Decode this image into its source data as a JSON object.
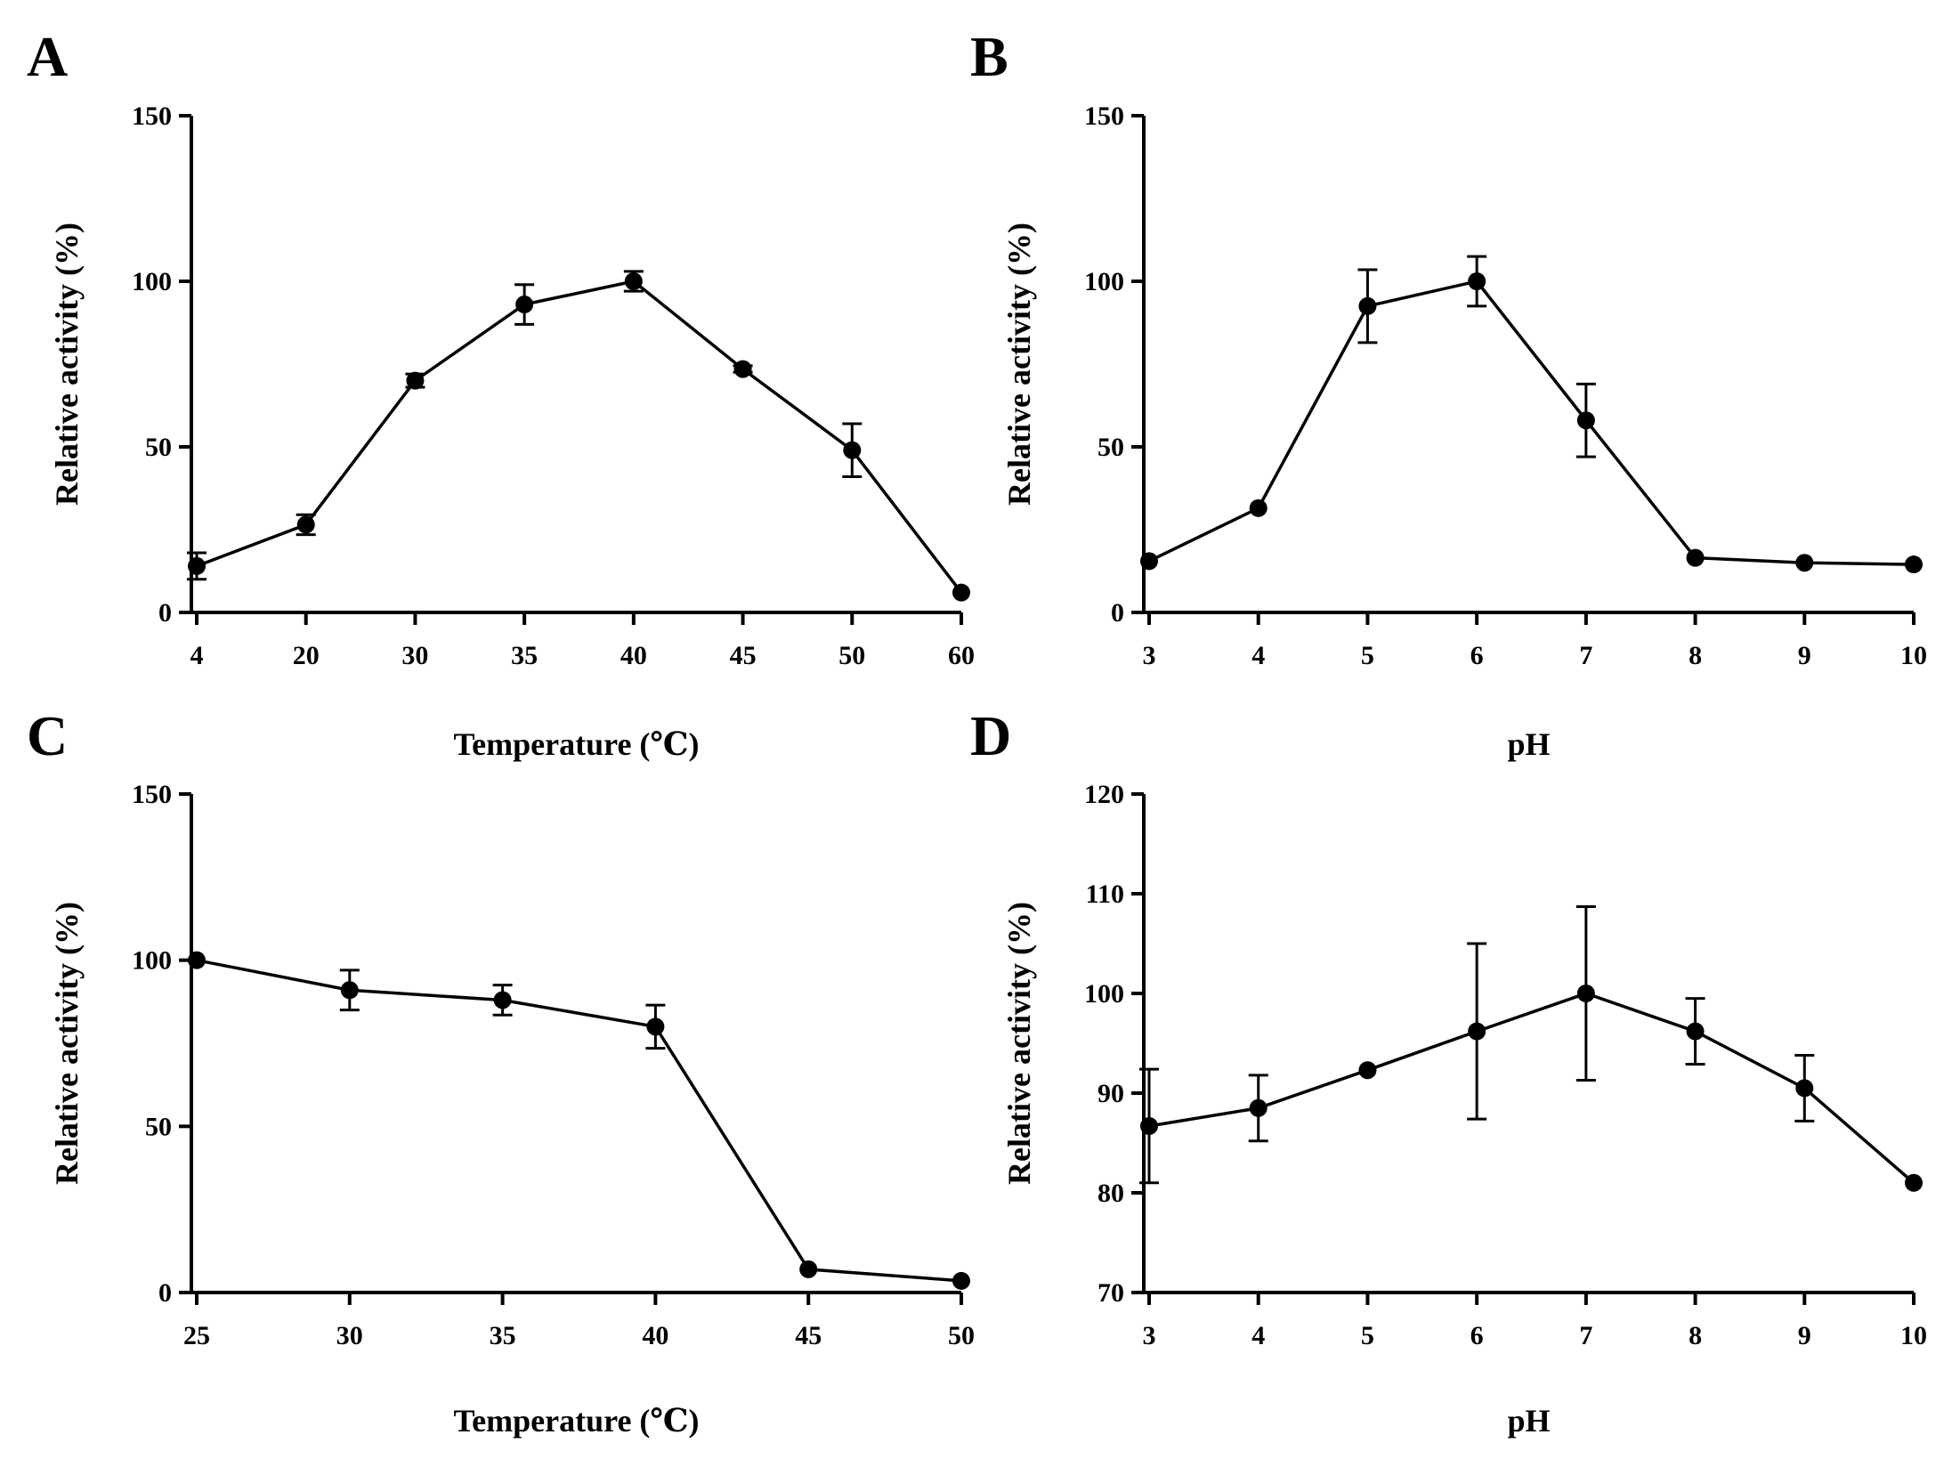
{
  "colors": {
    "ink": "#000000",
    "background": "#ffffff"
  },
  "chart_data": [
    {
      "panel": "A",
      "type": "line",
      "title": "",
      "xlabel": "Temperature (℃)",
      "ylabel": "Relative activity (%)",
      "categories": [
        "4",
        "20",
        "30",
        "35",
        "40",
        "45",
        "50",
        "60"
      ],
      "values": [
        14,
        26.5,
        70,
        93,
        100,
        73.5,
        49,
        6
      ],
      "errors": [
        4,
        3,
        2,
        6,
        3,
        1,
        8,
        0
      ],
      "ylim": [
        0,
        150
      ],
      "yticks": [
        "0",
        "50",
        "100",
        "150"
      ],
      "ytick_values": [
        0,
        50,
        100,
        150
      ]
    },
    {
      "panel": "B",
      "type": "line",
      "title": "",
      "xlabel": "pH",
      "ylabel": "Relative activity (%)",
      "categories": [
        "3",
        "4",
        "5",
        "6",
        "7",
        "8",
        "9",
        "10"
      ],
      "values": [
        15.5,
        31.5,
        92.5,
        100,
        58,
        16.5,
        15,
        14.5
      ],
      "errors": [
        0,
        0,
        11,
        7.5,
        11,
        0,
        0,
        0
      ],
      "ylim": [
        0,
        150
      ],
      "yticks": [
        "0",
        "50",
        "100",
        "150"
      ],
      "ytick_values": [
        0,
        50,
        100,
        150
      ]
    },
    {
      "panel": "C",
      "type": "line",
      "title": "",
      "xlabel": "Temperature (℃)",
      "ylabel": "Relative activity (%)",
      "categories": [
        "25",
        "30",
        "35",
        "40",
        "45",
        "50"
      ],
      "values": [
        100,
        91,
        88,
        80,
        7,
        3.5
      ],
      "errors": [
        0,
        6,
        4.5,
        6.5,
        0,
        0
      ],
      "ylim": [
        0,
        150
      ],
      "yticks": [
        "0",
        "50",
        "100",
        "150"
      ],
      "ytick_values": [
        0,
        50,
        100,
        150
      ]
    },
    {
      "panel": "D",
      "type": "line",
      "title": "",
      "xlabel": "pH",
      "ylabel": "Relative activity (%)",
      "categories": [
        "3",
        "4",
        "5",
        "6",
        "7",
        "8",
        "9",
        "10"
      ],
      "values": [
        86.7,
        88.5,
        92.3,
        96.2,
        100,
        96.2,
        90.5,
        81
      ],
      "errors": [
        5.7,
        3.3,
        0,
        8.8,
        8.7,
        3.3,
        3.3,
        0
      ],
      "ylim": [
        70,
        120
      ],
      "yticks": [
        "70",
        "80",
        "90",
        "100",
        "110",
        "120"
      ],
      "ytick_values": [
        70,
        80,
        90,
        100,
        110,
        120
      ]
    }
  ]
}
